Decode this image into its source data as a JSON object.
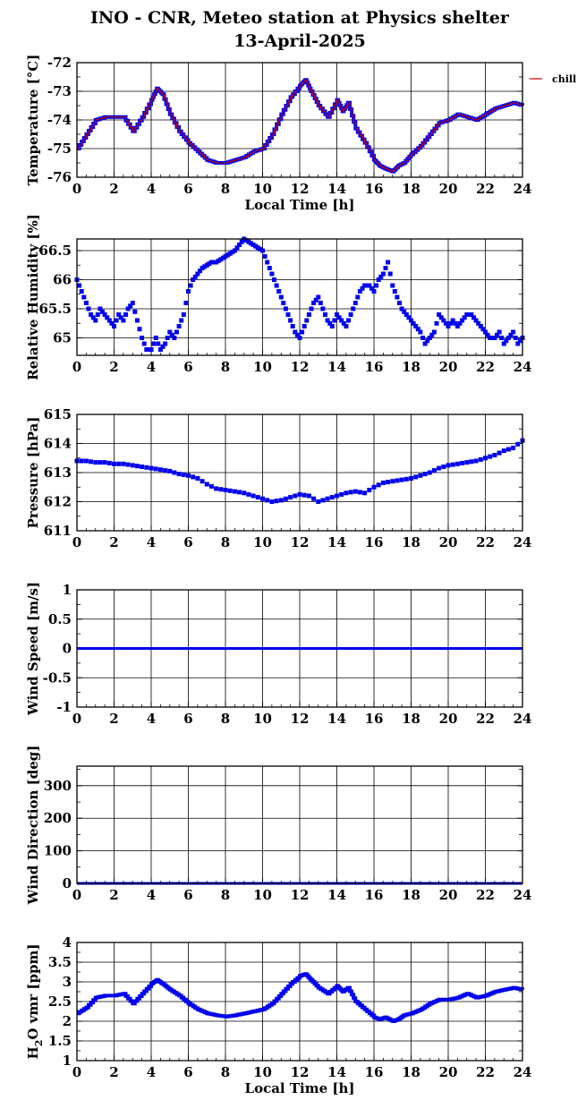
{
  "title": "INO - CNR, Meteo station at Physics shelter",
  "date": "13-April-2025",
  "legend": {
    "label": "chill",
    "color": "#cc0000"
  },
  "colors": {
    "series": "#0000ee",
    "grid": "#000000"
  },
  "chart_data": [
    {
      "type": "line",
      "ylabel": "Temperature [°C]",
      "xlabel": "Local Time [h]",
      "xlim": [
        0,
        24
      ],
      "ylim": [
        -76,
        -72
      ],
      "yticks": [
        -76,
        -75,
        -74,
        -73,
        -72
      ],
      "yticklabels": [
        "-76",
        "-75",
        "-74",
        "-73",
        "-72"
      ],
      "yminor": [
        -75.5,
        -74.5,
        -73.5,
        -72.5
      ],
      "series": [
        {
          "name": "",
          "x": [
            0,
            0.5,
            1,
            1.5,
            2,
            2.5,
            3,
            3.5,
            4,
            4.3,
            4.6,
            5,
            5.5,
            6,
            6.5,
            7,
            7.5,
            8,
            8.5,
            9,
            9.5,
            10,
            10.5,
            11,
            11.5,
            12,
            12.3,
            12.6,
            13,
            13.5,
            14,
            14.3,
            14.6,
            15,
            15.5,
            16,
            16.3,
            16.6,
            17,
            17.3,
            17.6,
            18,
            18.5,
            19,
            19.5,
            20,
            20.5,
            21,
            21.5,
            22,
            22.5,
            23,
            23.5,
            24
          ],
          "y": [
            -75,
            -74.5,
            -74,
            -73.9,
            -73.9,
            -73.9,
            -74.4,
            -73.9,
            -73.3,
            -72.9,
            -73.1,
            -73.8,
            -74.4,
            -74.8,
            -75.1,
            -75.4,
            -75.5,
            -75.5,
            -75.4,
            -75.3,
            -75.1,
            -75,
            -74.5,
            -73.8,
            -73.2,
            -72.8,
            -72.6,
            -73,
            -73.5,
            -73.9,
            -73.3,
            -73.7,
            -73.4,
            -74.3,
            -74.8,
            -75.4,
            -75.6,
            -75.7,
            -75.8,
            -75.6,
            -75.5,
            -75.2,
            -74.9,
            -74.5,
            -74.1,
            -74,
            -73.8,
            -73.9,
            -74,
            -73.8,
            -73.6,
            -73.5,
            -73.4,
            -73.5
          ]
        }
      ]
    },
    {
      "type": "scatter",
      "ylabel": "Relative Humidity [%]",
      "xlim": [
        0,
        24
      ],
      "ylim": [
        64.7,
        66.7
      ],
      "yticks": [
        65,
        65.5,
        66,
        66.5
      ],
      "yticklabels": [
        "65",
        "65.5",
        "66",
        "66.5"
      ],
      "yminor": [
        65.25,
        65.75,
        66.25
      ],
      "series": [
        {
          "name": "",
          "x": [
            0,
            0.25,
            0.5,
            0.75,
            1,
            1.25,
            1.5,
            1.75,
            2,
            2.25,
            2.5,
            2.75,
            3,
            3.25,
            3.5,
            3.75,
            4,
            4.25,
            4.5,
            4.75,
            5,
            5.25,
            5.5,
            5.75,
            6,
            6.25,
            6.5,
            6.75,
            7,
            7.25,
            7.5,
            7.75,
            8,
            8.25,
            8.5,
            8.75,
            9,
            9.25,
            9.5,
            9.75,
            10,
            10.25,
            10.5,
            10.75,
            11,
            11.25,
            11.5,
            11.75,
            12,
            12.25,
            12.5,
            12.75,
            13,
            13.25,
            13.5,
            13.75,
            14,
            14.25,
            14.5,
            14.75,
            15,
            15.25,
            15.5,
            15.75,
            16,
            16.25,
            16.5,
            16.75,
            17,
            17.25,
            17.5,
            17.75,
            18,
            18.25,
            18.5,
            18.75,
            19,
            19.25,
            19.5,
            19.75,
            20,
            20.25,
            20.5,
            20.75,
            21,
            21.25,
            21.5,
            21.75,
            22,
            22.25,
            22.5,
            22.75,
            23,
            23.25,
            23.5,
            23.75,
            24
          ],
          "y": [
            66,
            65.8,
            65.6,
            65.4,
            65.3,
            65.5,
            65.4,
            65.3,
            65.2,
            65.4,
            65.3,
            65.5,
            65.6,
            65.3,
            65,
            64.8,
            64.8,
            65,
            64.8,
            64.9,
            65.1,
            65,
            65.2,
            65.4,
            65.8,
            66.0,
            66.1,
            66.2,
            66.25,
            66.3,
            66.3,
            66.35,
            66.4,
            66.45,
            66.5,
            66.6,
            66.7,
            66.65,
            66.6,
            66.55,
            66.5,
            66.3,
            66.1,
            65.9,
            65.7,
            65.5,
            65.3,
            65.1,
            65,
            65.2,
            65.4,
            65.6,
            65.7,
            65.5,
            65.3,
            65.2,
            65.4,
            65.3,
            65.2,
            65.4,
            65.6,
            65.8,
            65.9,
            65.9,
            65.8,
            66.0,
            66.1,
            66.3,
            65.9,
            65.7,
            65.5,
            65.4,
            65.3,
            65.2,
            65.1,
            64.9,
            65,
            65.1,
            65.4,
            65.3,
            65.2,
            65.3,
            65.2,
            65.3,
            65.4,
            65.4,
            65.3,
            65.2,
            65.1,
            65.0,
            65.0,
            65.1,
            64.9,
            65.0,
            65.1,
            64.9,
            65.0
          ]
        }
      ]
    },
    {
      "type": "scatter",
      "ylabel": "Pressure [hPa]",
      "xlim": [
        0,
        24
      ],
      "ylim": [
        611,
        615
      ],
      "yticks": [
        611,
        612,
        613,
        614,
        615
      ],
      "yticklabels": [
        "611",
        "612",
        "613",
        "614",
        "615"
      ],
      "yminor": [
        611.5,
        612.5,
        613.5,
        614.5
      ],
      "series": [
        {
          "name": "",
          "x": [
            0,
            0.5,
            1,
            1.5,
            2,
            2.5,
            3,
            3.5,
            4,
            4.5,
            5,
            5.5,
            6,
            6.5,
            7,
            7.5,
            8,
            8.5,
            9,
            9.5,
            10,
            10.5,
            11,
            11.5,
            12,
            12.5,
            13,
            13.5,
            14,
            14.5,
            15,
            15.5,
            16,
            16.5,
            17,
            17.5,
            18,
            18.5,
            19,
            19.5,
            20,
            20.5,
            21,
            21.5,
            22,
            22.5,
            23,
            23.5,
            24
          ],
          "y": [
            613.4,
            613.4,
            613.35,
            613.35,
            613.3,
            613.3,
            613.25,
            613.2,
            613.15,
            613.1,
            613.05,
            612.95,
            612.9,
            612.8,
            612.6,
            612.45,
            612.4,
            612.35,
            612.3,
            612.2,
            612.1,
            612,
            612.05,
            612.15,
            612.25,
            612.2,
            612,
            612.1,
            612.2,
            612.3,
            612.35,
            612.3,
            612.5,
            612.65,
            612.7,
            612.75,
            612.8,
            612.9,
            613.0,
            613.15,
            613.25,
            613.3,
            613.35,
            613.4,
            613.5,
            613.6,
            613.75,
            613.85,
            614.1
          ]
        }
      ]
    },
    {
      "type": "line",
      "ylabel": "Wind Speed [m/s]",
      "xlim": [
        0,
        24
      ],
      "ylim": [
        -1,
        1
      ],
      "yticks": [
        -1,
        -0.5,
        0,
        0.5,
        1
      ],
      "yticklabels": [
        "-1",
        "-0.5",
        "0",
        "0.5",
        "1"
      ],
      "yminor": [
        -0.75,
        -0.25,
        0.25,
        0.75
      ],
      "series": [
        {
          "name": "",
          "x": [
            0,
            24
          ],
          "y": [
            0,
            0
          ]
        }
      ]
    },
    {
      "type": "line",
      "ylabel": "Wind Direction [deg]",
      "xlim": [
        0,
        24
      ],
      "ylim": [
        0,
        360
      ],
      "yticks": [
        0,
        100,
        200,
        300
      ],
      "yticklabels": [
        "0",
        "100",
        "200",
        "300"
      ],
      "yminor": [
        50,
        150,
        250,
        350
      ],
      "series": [
        {
          "name": "",
          "x": [
            0,
            24
          ],
          "y": [
            0,
            0
          ]
        }
      ]
    },
    {
      "type": "line",
      "ylabel": "H2O vmr [ppm]",
      "xlabel": "Local Time [h]",
      "xlim": [
        0,
        24
      ],
      "ylim": [
        1,
        4
      ],
      "yticks": [
        1,
        1.5,
        2,
        2.5,
        3,
        3.5,
        4
      ],
      "yticklabels": [
        "1",
        "1.5",
        "2",
        "2.5",
        "3",
        "3.5",
        "4"
      ],
      "yminor": [
        1.25,
        1.75,
        2.25,
        2.75,
        3.25,
        3.75
      ],
      "series": [
        {
          "name": "",
          "x": [
            0,
            0.5,
            1,
            1.5,
            2,
            2.5,
            3,
            3.5,
            4,
            4.3,
            4.6,
            5,
            5.5,
            6,
            6.5,
            7,
            7.5,
            8,
            8.5,
            9,
            9.5,
            10,
            10.5,
            11,
            11.5,
            12,
            12.3,
            12.6,
            13,
            13.5,
            14,
            14.3,
            14.6,
            15,
            15.5,
            16,
            16.3,
            16.6,
            17,
            17.3,
            17.6,
            18,
            18.5,
            19,
            19.5,
            20,
            20.5,
            21,
            21.5,
            22,
            22.5,
            23,
            23.5,
            24
          ],
          "y": [
            2.2,
            2.35,
            2.6,
            2.65,
            2.65,
            2.7,
            2.45,
            2.7,
            2.95,
            3.05,
            2.95,
            2.8,
            2.65,
            2.45,
            2.3,
            2.2,
            2.15,
            2.12,
            2.15,
            2.2,
            2.25,
            2.3,
            2.45,
            2.7,
            2.95,
            3.15,
            3.2,
            3.05,
            2.85,
            2.7,
            2.9,
            2.75,
            2.85,
            2.5,
            2.3,
            2.1,
            2.05,
            2.1,
            2.0,
            2.05,
            2.15,
            2.2,
            2.3,
            2.45,
            2.55,
            2.55,
            2.6,
            2.7,
            2.6,
            2.65,
            2.75,
            2.8,
            2.85,
            2.8
          ]
        }
      ]
    }
  ],
  "xticks": [
    0,
    2,
    4,
    6,
    8,
    10,
    12,
    14,
    16,
    18,
    20,
    22,
    24
  ],
  "xticklabels": [
    "0",
    "2",
    "4",
    "6",
    "8",
    "10",
    "12",
    "14",
    "16",
    "18",
    "20",
    "22",
    "24"
  ]
}
